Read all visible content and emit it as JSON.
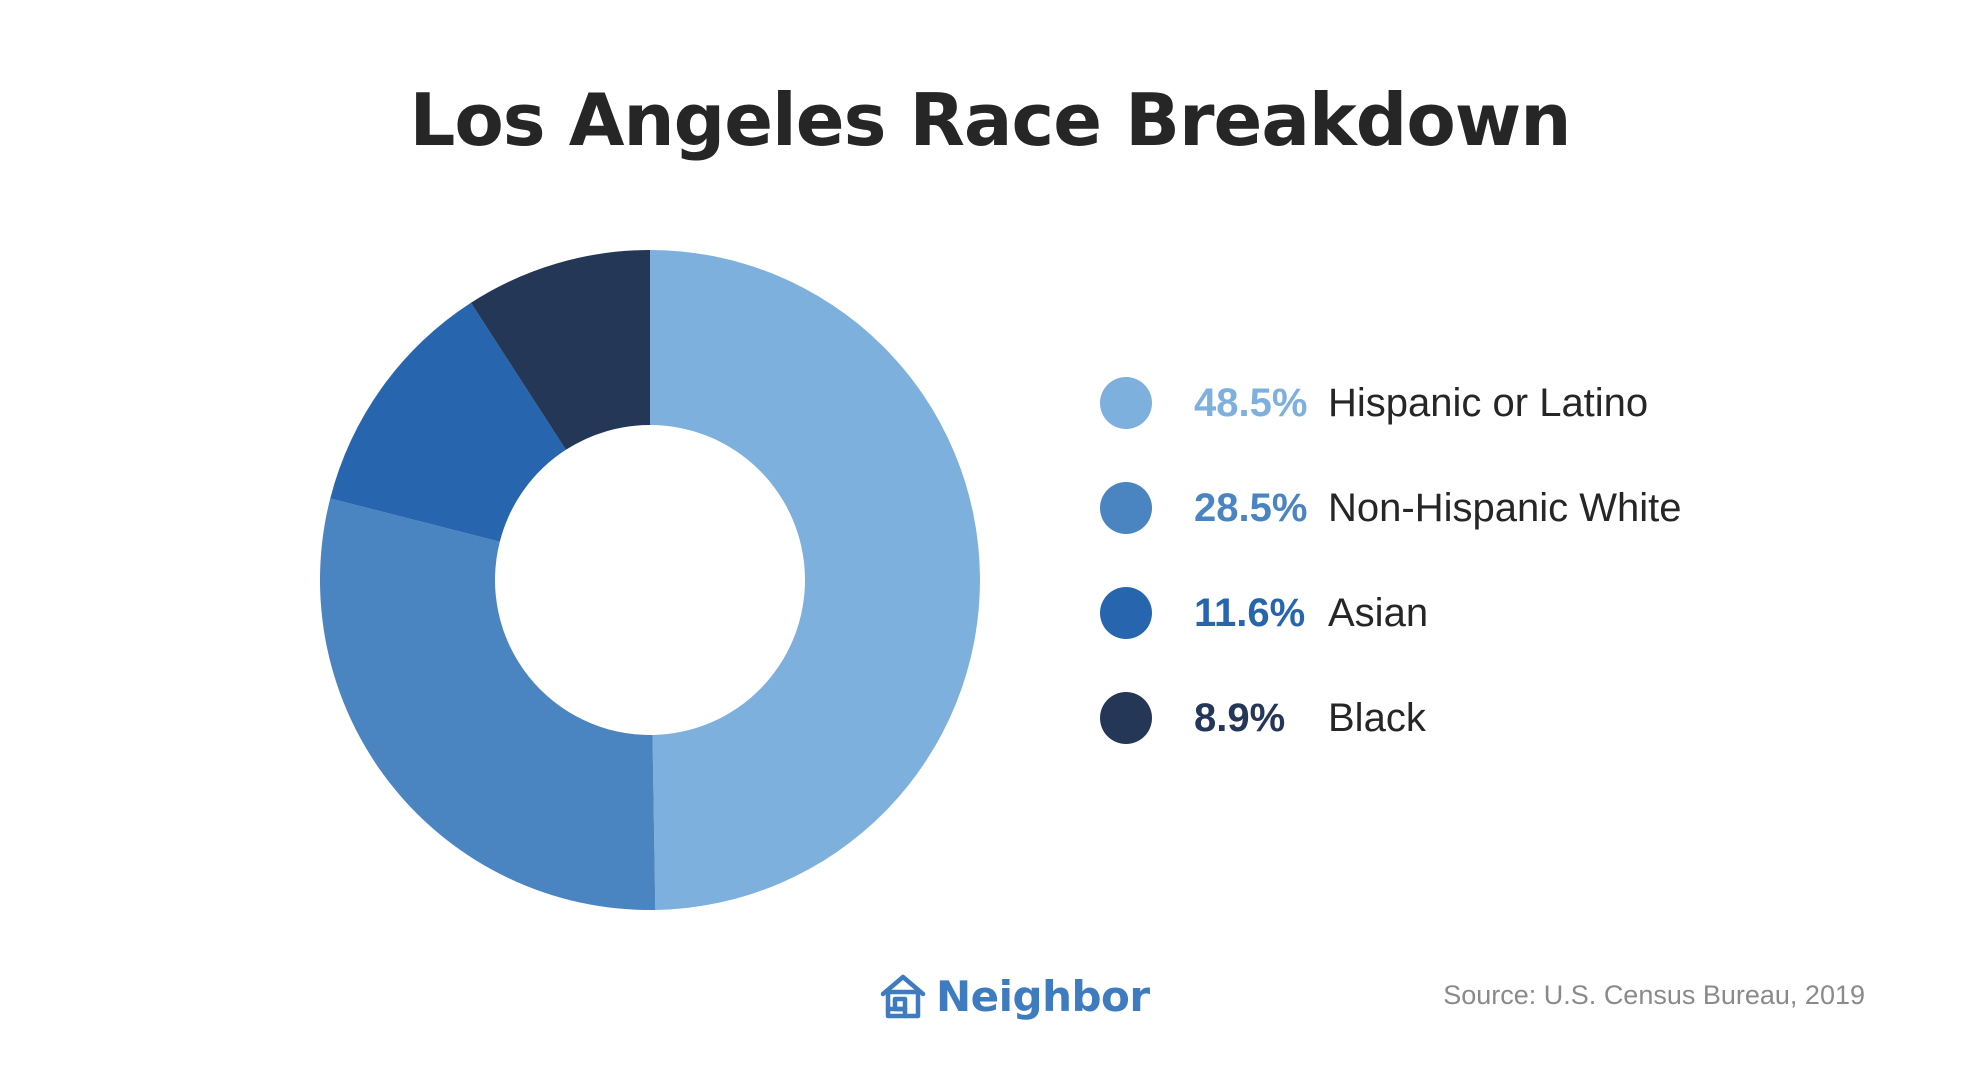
{
  "chart_data": {
    "type": "pie",
    "title": "Los Angeles Race Breakdown",
    "hole": true,
    "legend_position": "right",
    "categories": [
      "Hispanic or Latino",
      "Non-Hispanic White",
      "Asian",
      "Black"
    ],
    "values": [
      48.5,
      28.5,
      11.6,
      8.9
    ],
    "value_labels": [
      "48.5%",
      "28.5%",
      "11.6%",
      "8.9%"
    ],
    "colors": [
      "#7eb0dd",
      "#4a84c1",
      "#2766ae",
      "#253756"
    ]
  },
  "legend": {
    "items": [
      {
        "pct": "48.5%",
        "label": "Hispanic or Latino",
        "color": "#7eb0dd"
      },
      {
        "pct": "28.5%",
        "label": "Non-Hispanic White",
        "color": "#4a84c1"
      },
      {
        "pct": "11.6%",
        "label": "Asian",
        "color": "#2766ae"
      },
      {
        "pct": "8.9%",
        "label": "Black",
        "color": "#253756"
      }
    ]
  },
  "footer": {
    "brand_name": "Neighbor",
    "brand_icon": "house-icon",
    "brand_color": "#3f7bbf",
    "source": "Source: U.S. Census Bureau, 2019"
  }
}
